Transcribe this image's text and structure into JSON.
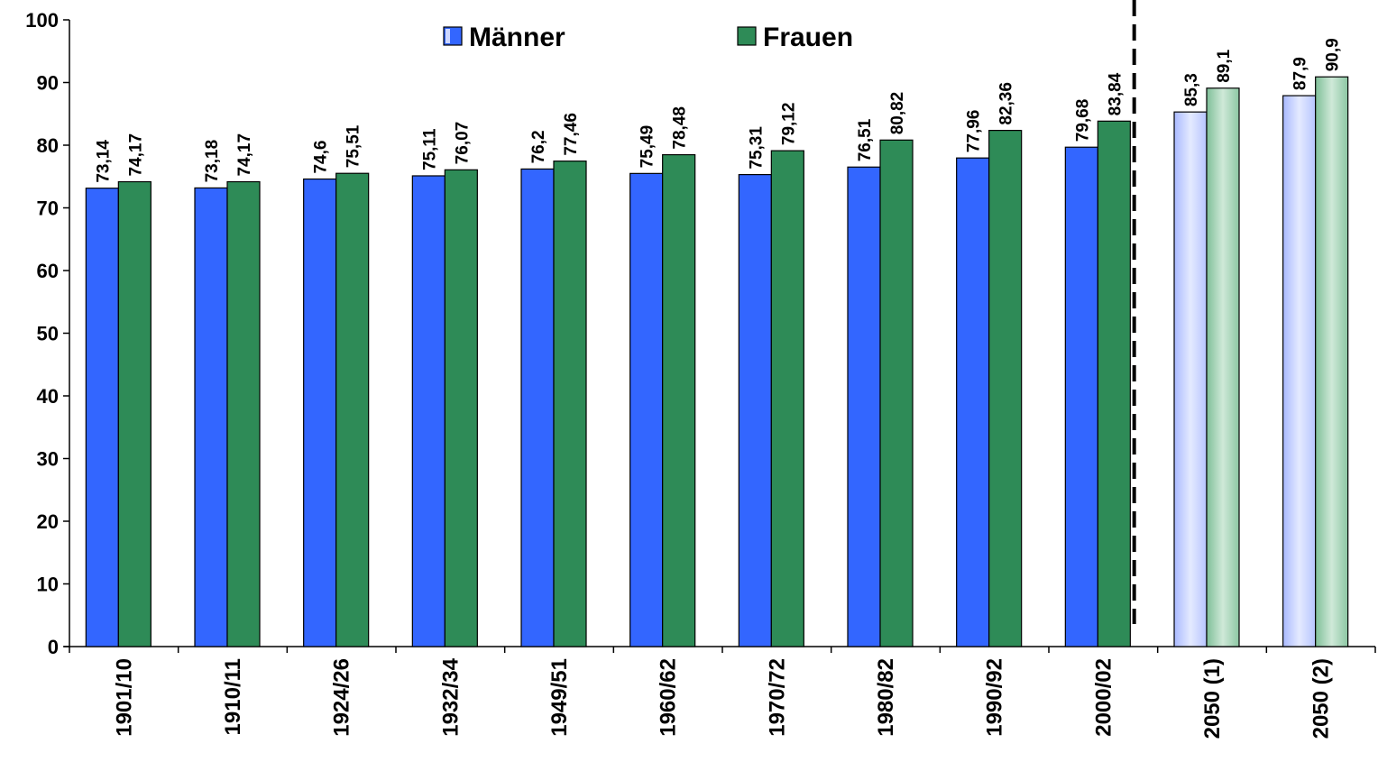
{
  "chart_data": {
    "type": "bar",
    "categories": [
      "1901/10",
      "1910/11",
      "1924/26",
      "1932/34",
      "1949/51",
      "1960/62",
      "1970/72",
      "1980/82",
      "1990/92",
      "2000/02",
      "2050 (1)",
      "2050 (2)"
    ],
    "series": [
      {
        "name": "Männer",
        "color": "#3366ff",
        "projection_color": "#cdd7ff",
        "values": [
          73.14,
          73.18,
          74.6,
          75.11,
          76.2,
          75.49,
          75.31,
          76.51,
          77.96,
          79.68,
          85.3,
          87.9
        ],
        "labels": [
          "73,14",
          "73,18",
          "74,6",
          "75,11",
          "76,2",
          "75,49",
          "75,31",
          "76,51",
          "77,96",
          "79,68",
          "85,3",
          "87,9"
        ]
      },
      {
        "name": "Frauen",
        "color": "#2e8b57",
        "projection_color": "#a6d6b8",
        "values": [
          74.17,
          74.17,
          75.51,
          76.07,
          77.46,
          78.48,
          79.12,
          80.82,
          82.36,
          83.84,
          89.1,
          90.9
        ],
        "labels": [
          "74,17",
          "74,17",
          "75,51",
          "76,07",
          "77,46",
          "78,48",
          "79,12",
          "80,82",
          "82,36",
          "83,84",
          "89,1",
          "90,9"
        ]
      }
    ],
    "projection_start_index": 10,
    "divider": "dashed vertical line before 2050 (1)",
    "ylim": [
      0,
      100
    ],
    "yticks": [
      "0",
      "10",
      "20",
      "30",
      "40",
      "50",
      "60",
      "70",
      "80",
      "90",
      "100"
    ],
    "xlabel": "",
    "ylabel": "",
    "title": "",
    "grid": false,
    "legend_placement": "top-center"
  }
}
